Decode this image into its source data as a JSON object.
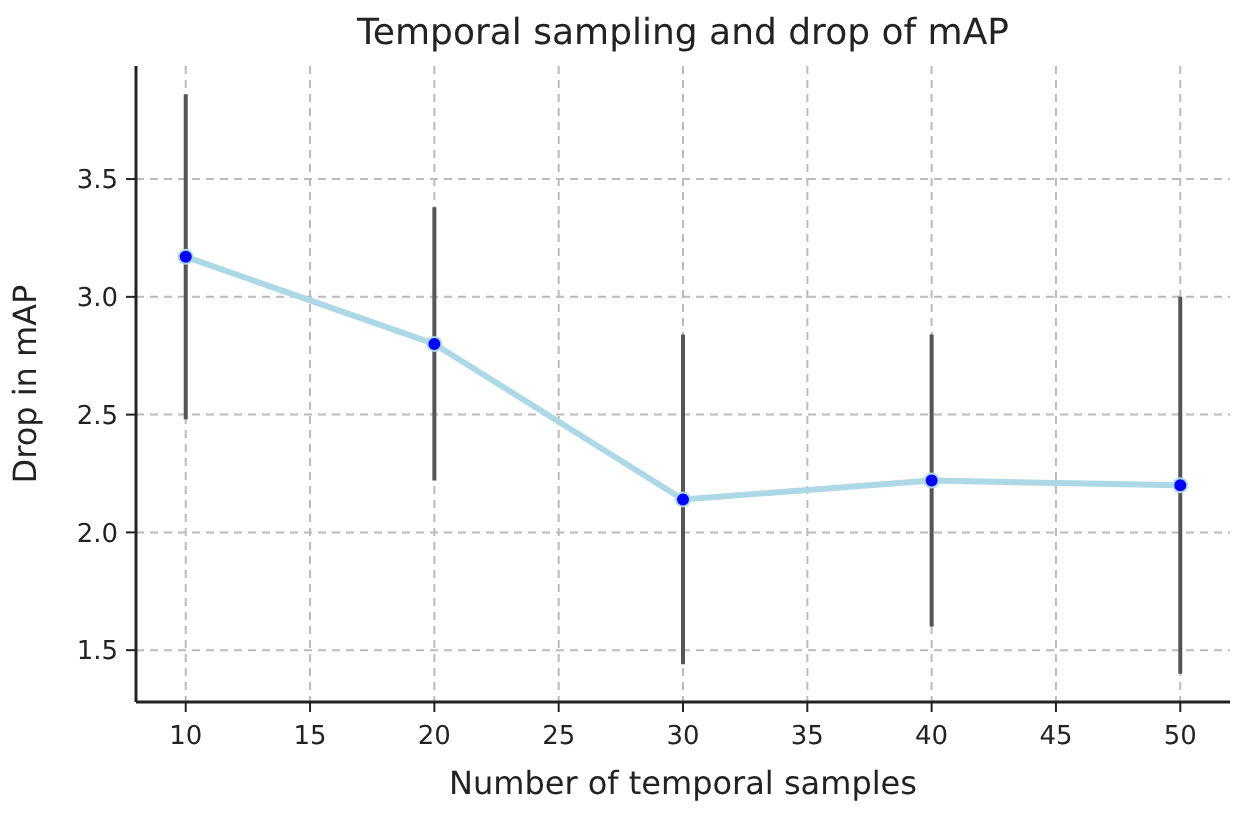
{
  "chart_data": {
    "type": "line",
    "title": "Temporal sampling and drop of mAP",
    "xlabel": "Number of temporal samples",
    "ylabel": "Drop in mAP",
    "x": [
      10,
      20,
      30,
      40,
      50
    ],
    "series": [
      {
        "color": "#add8e6",
        "values": [
          3.17,
          2.8,
          2.14,
          2.22,
          2.2
        ],
        "errors": [
          0.69,
          0.58,
          0.7,
          0.62,
          0.8
        ]
      }
    ],
    "xlim": [
      8,
      52
    ],
    "xticks": [
      10,
      15,
      20,
      25,
      30,
      35,
      40,
      45,
      50
    ],
    "ylim": [
      1.28,
      3.98
    ],
    "yticks": [
      {
        "value": 1.5,
        "label": "1.5"
      },
      {
        "value": 2,
        "label": "2.0"
      },
      {
        "value": 2.5,
        "label": "2.5"
      },
      {
        "value": 3,
        "label": "3.0"
      },
      {
        "value": 3.5,
        "label": "3.5"
      }
    ],
    "grid": true,
    "marker": "circle",
    "line_style": "solid"
  }
}
